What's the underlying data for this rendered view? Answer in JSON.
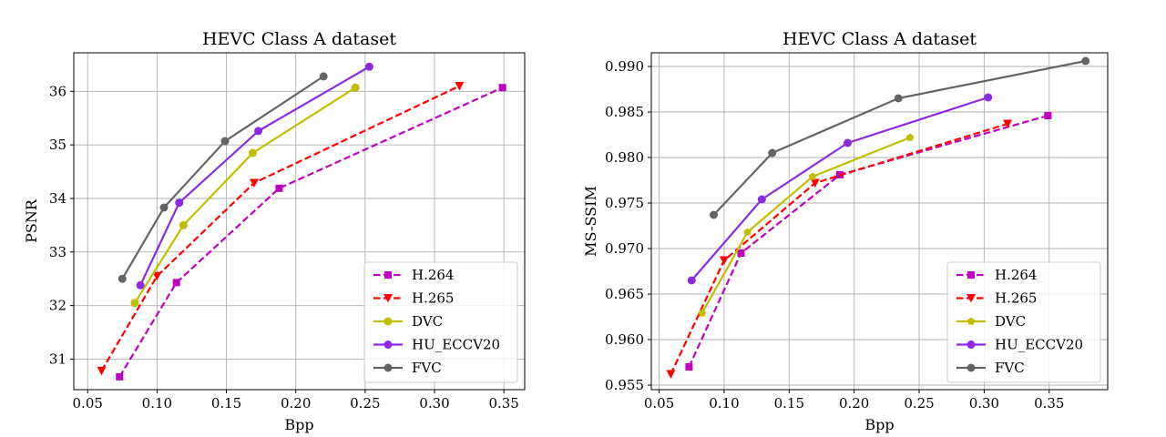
{
  "chart_data": [
    {
      "type": "line",
      "title": "HEVC Class A dataset",
      "xlabel": "Bpp",
      "ylabel": "PSNR",
      "xlim": [
        0.04,
        0.365
      ],
      "ylim": [
        30.43,
        36.72
      ],
      "xticks": [
        0.05,
        0.1,
        0.15,
        0.2,
        0.25,
        0.3,
        0.35
      ],
      "xtick_labels": [
        "0.05",
        "0.10",
        "0.15",
        "0.20",
        "0.25",
        "0.30",
        "0.35"
      ],
      "yticks": [
        31,
        32,
        33,
        34,
        35,
        36
      ],
      "ytick_labels": [
        "31",
        "32",
        "33",
        "34",
        "35",
        "36"
      ],
      "grid": true,
      "legend_position": "lower-right",
      "series": [
        {
          "name": "H.264",
          "color": "#bf00bf",
          "dash": "dashed",
          "marker": "square",
          "x": [
            0.073,
            0.114,
            0.188,
            0.349
          ],
          "y": [
            30.67,
            32.43,
            34.19,
            36.07
          ]
        },
        {
          "name": "H.265",
          "color": "#ff0000",
          "dash": "dashed",
          "marker": "triangle-down",
          "x": [
            0.06,
            0.1,
            0.17,
            0.318
          ],
          "y": [
            30.78,
            32.55,
            34.29,
            36.1
          ]
        },
        {
          "name": "DVC",
          "color": "#bfbf00",
          "dash": "solid",
          "marker": "circle",
          "x": [
            0.084,
            0.119,
            0.169,
            0.243
          ],
          "y": [
            32.05,
            33.5,
            34.85,
            36.07
          ]
        },
        {
          "name": "HU_ECCV20",
          "color": "#8a2be2",
          "dash": "solid",
          "marker": "circle",
          "x": [
            0.088,
            0.116,
            0.173,
            0.253
          ],
          "y": [
            32.38,
            33.92,
            35.26,
            36.46
          ]
        },
        {
          "name": "FVC",
          "color": "#646464",
          "dash": "solid",
          "marker": "circle",
          "x": [
            0.075,
            0.105,
            0.149,
            0.22
          ],
          "y": [
            32.5,
            33.83,
            35.07,
            36.28
          ]
        }
      ]
    },
    {
      "type": "line",
      "title": "HEVC Class A dataset",
      "xlabel": "Bpp",
      "ylabel": "MS-SSIM",
      "xlim": [
        0.044,
        0.395
      ],
      "ylim": [
        0.9545,
        0.9915
      ],
      "xticks": [
        0.05,
        0.1,
        0.15,
        0.2,
        0.25,
        0.3,
        0.35
      ],
      "xtick_labels": [
        "0.05",
        "0.10",
        "0.15",
        "0.20",
        "0.25",
        "0.30",
        "0.35"
      ],
      "yticks": [
        0.955,
        0.96,
        0.965,
        0.97,
        0.975,
        0.98,
        0.985,
        0.99
      ],
      "ytick_labels": [
        "0.955",
        "0.960",
        "0.965",
        "0.970",
        "0.975",
        "0.980",
        "0.985",
        "0.990"
      ],
      "grid": true,
      "legend_position": "lower-right",
      "series": [
        {
          "name": "H.264",
          "color": "#bf00bf",
          "dash": "dashed",
          "marker": "square",
          "x": [
            0.073,
            0.113,
            0.189,
            0.349
          ],
          "y": [
            0.957,
            0.9695,
            0.9781,
            0.9846
          ]
        },
        {
          "name": "H.265",
          "color": "#ff0000",
          "dash": "dashed",
          "marker": "triangle-down",
          "x": [
            0.059,
            0.1,
            0.17,
            0.318
          ],
          "y": [
            0.9562,
            0.9687,
            0.9772,
            0.9837
          ]
        },
        {
          "name": "DVC",
          "color": "#bfbf00",
          "dash": "solid",
          "marker": "pentagon",
          "x": [
            0.083,
            0.118,
            0.168,
            0.243
          ],
          "y": [
            0.9629,
            0.9718,
            0.9779,
            0.9822
          ]
        },
        {
          "name": "HU_ECCV20",
          "color": "#8a2be2",
          "dash": "solid",
          "marker": "circle",
          "x": [
            0.075,
            0.129,
            0.195,
            0.303
          ],
          "y": [
            0.9665,
            0.9754,
            0.9816,
            0.9866
          ]
        },
        {
          "name": "FVC",
          "color": "#646464",
          "dash": "solid",
          "marker": "circle",
          "x": [
            0.092,
            0.137,
            0.234,
            0.378
          ],
          "y": [
            0.9737,
            0.9805,
            0.9865,
            0.9906
          ]
        }
      ]
    }
  ]
}
